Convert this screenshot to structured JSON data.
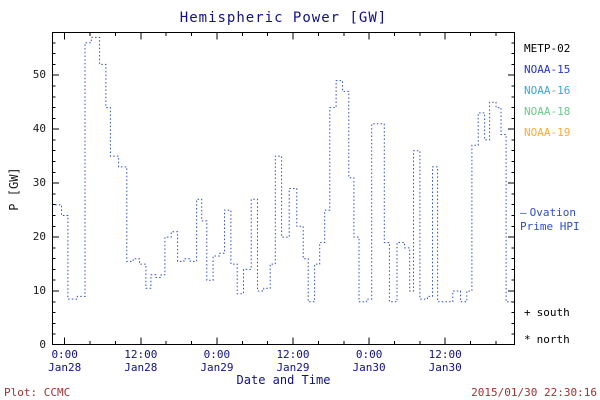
{
  "title": "Hemispheric Power [GW]",
  "colors": {
    "background": "#ffffff",
    "title": "#10108c",
    "time_text": "#10108c",
    "axis_text": "#1a1a1a",
    "annotation": "#a03232",
    "line": "#2e4fc4"
  },
  "footer": {
    "plot_label": "Plot: CCMC",
    "timestamp": "2015/01/30 22:30:16"
  },
  "legend": {
    "satellites": [
      {
        "label": "METP-02",
        "color": "#000000"
      },
      {
        "label": "NOAA-15",
        "color": "#2233cc"
      },
      {
        "label": "NOAA-16",
        "color": "#33aadd"
      },
      {
        "label": "NOAA-18",
        "color": "#66cc88"
      },
      {
        "label": "NOAA-19",
        "color": "#ffaa33"
      }
    ],
    "ovation": {
      "marker": "–",
      "line1": "Ovation",
      "line2": "Prime HPI",
      "color": "#2e4fc4"
    },
    "markers": [
      {
        "symbol": "+",
        "label": "south"
      },
      {
        "symbol": "*",
        "label": "north"
      }
    ]
  },
  "chart_data": {
    "type": "line",
    "line_style": "dotted-step",
    "title": "Hemispheric Power [GW]",
    "xlabel": "Date and Time",
    "ylabel": "P [GW]",
    "x_unit": "hours since 2015-01-28 00:00",
    "xlim_hours": [
      -2,
      71
    ],
    "ylim": [
      0,
      58
    ],
    "yticks": [
      0,
      10,
      20,
      30,
      40,
      50
    ],
    "xticks": [
      {
        "hour": 0,
        "time": "0:00",
        "date": "Jan28"
      },
      {
        "hour": 12,
        "time": "12:00",
        "date": "Jan28"
      },
      {
        "hour": 24,
        "time": "0:00",
        "date": "Jan29"
      },
      {
        "hour": 36,
        "time": "12:00",
        "date": "Jan29"
      },
      {
        "hour": 48,
        "time": "0:00",
        "date": "Jan30"
      },
      {
        "hour": 60,
        "time": "12:00",
        "date": "Jan30"
      }
    ],
    "grid": false,
    "legend_position": "right",
    "series": [
      {
        "name": "Ovation Prime HPI",
        "color": "#2e4fc4",
        "points": [
          [
            -1.5,
            26
          ],
          [
            -0.5,
            24
          ],
          [
            0.5,
            8.5
          ],
          [
            2,
            9
          ],
          [
            3.2,
            56
          ],
          [
            4.2,
            57
          ],
          [
            5.5,
            52
          ],
          [
            6.5,
            44
          ],
          [
            7.2,
            35
          ],
          [
            8.5,
            33
          ],
          [
            9.8,
            15.5
          ],
          [
            10.8,
            16
          ],
          [
            11.8,
            15
          ],
          [
            12.8,
            10.5
          ],
          [
            13.6,
            13
          ],
          [
            14.4,
            12.5
          ],
          [
            15.2,
            13
          ],
          [
            15.8,
            20
          ],
          [
            16.8,
            21
          ],
          [
            17.8,
            15.5
          ],
          [
            18.8,
            16
          ],
          [
            19.8,
            15.5
          ],
          [
            20.8,
            27
          ],
          [
            21.6,
            23
          ],
          [
            22.4,
            12
          ],
          [
            23.4,
            16.5
          ],
          [
            24.4,
            17
          ],
          [
            25.2,
            25
          ],
          [
            26.2,
            15
          ],
          [
            27.2,
            9.5
          ],
          [
            28.2,
            14
          ],
          [
            29.4,
            27
          ],
          [
            30.4,
            10
          ],
          [
            31.4,
            10.5
          ],
          [
            32.4,
            15
          ],
          [
            33.2,
            35
          ],
          [
            34.2,
            20
          ],
          [
            35.4,
            29
          ],
          [
            36.6,
            22
          ],
          [
            37.6,
            16
          ],
          [
            38.4,
            8
          ],
          [
            39.4,
            15
          ],
          [
            40.2,
            19
          ],
          [
            41,
            25
          ],
          [
            41.8,
            44
          ],
          [
            42.8,
            49
          ],
          [
            43.8,
            47
          ],
          [
            44.8,
            31
          ],
          [
            45.6,
            20
          ],
          [
            46.4,
            8
          ],
          [
            47.6,
            8.5
          ],
          [
            48.4,
            41
          ],
          [
            49.6,
            41
          ],
          [
            50.4,
            19
          ],
          [
            51.2,
            8
          ],
          [
            52.4,
            19
          ],
          [
            53.6,
            18
          ],
          [
            54.4,
            10
          ],
          [
            55,
            36
          ],
          [
            56,
            8.5
          ],
          [
            57.2,
            9
          ],
          [
            58,
            33
          ],
          [
            58.8,
            8
          ],
          [
            60,
            8
          ],
          [
            61.2,
            10
          ],
          [
            62.4,
            8
          ],
          [
            63.4,
            10
          ],
          [
            64.2,
            37
          ],
          [
            65.2,
            43
          ],
          [
            66.2,
            38
          ],
          [
            67,
            45
          ],
          [
            68,
            44
          ],
          [
            68.8,
            39
          ],
          [
            69.6,
            8
          ],
          [
            70.5,
            8
          ]
        ]
      }
    ]
  }
}
